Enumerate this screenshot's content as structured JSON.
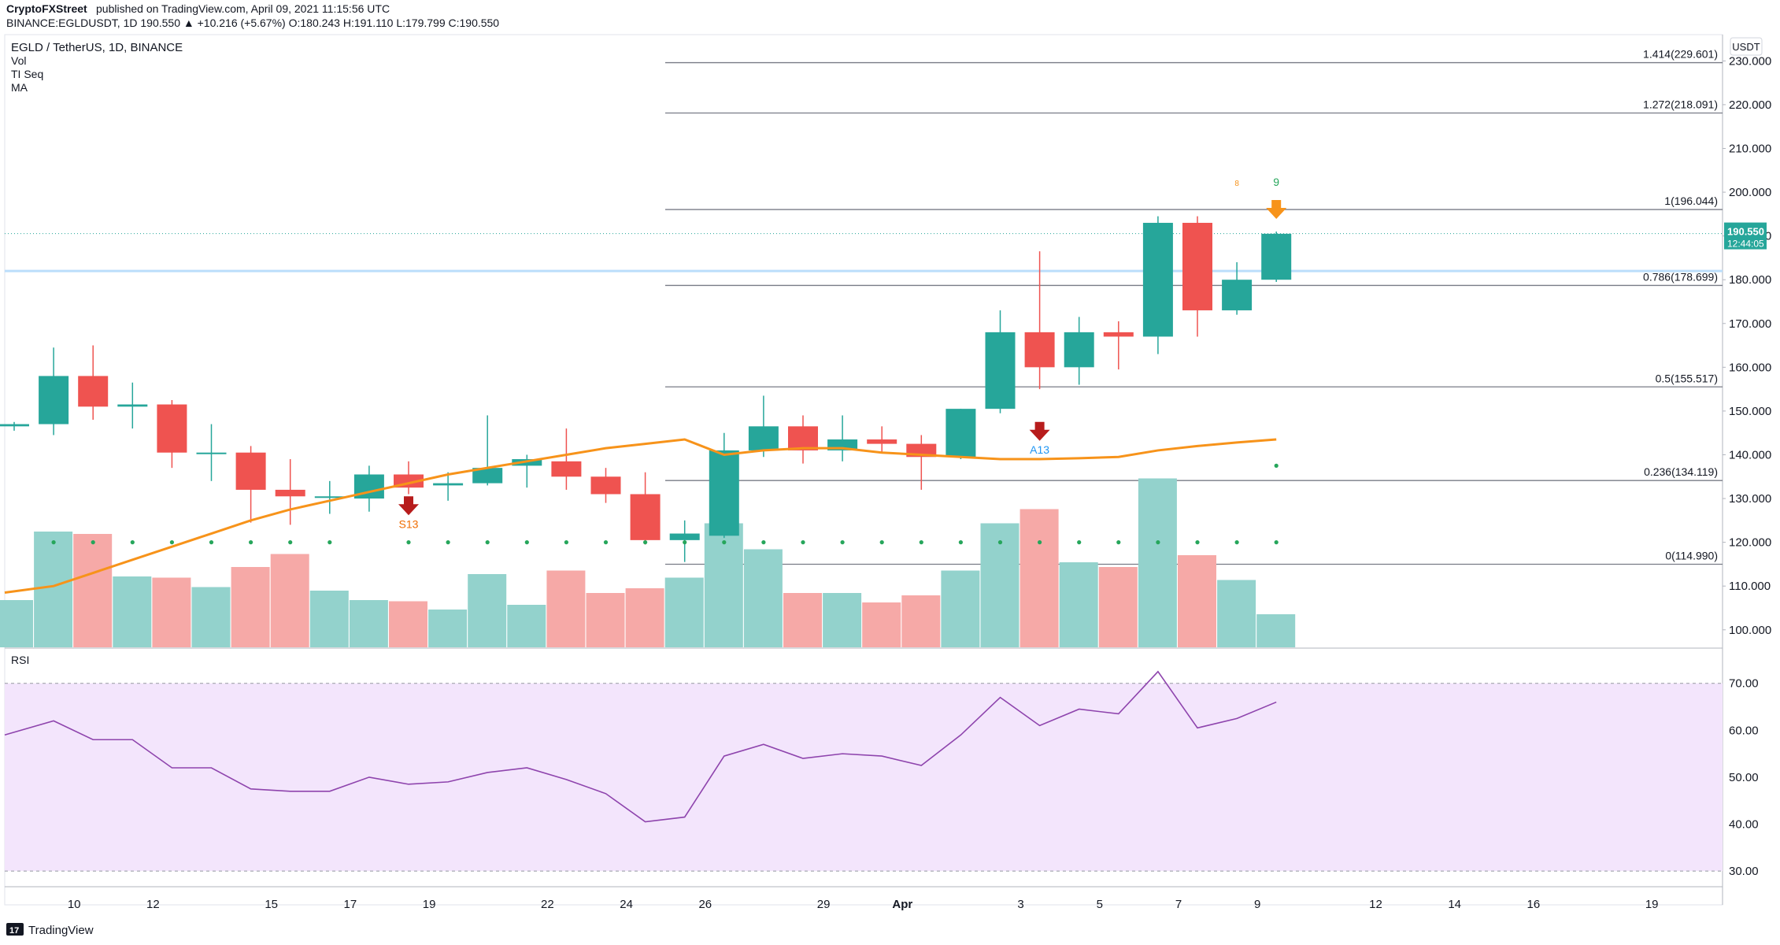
{
  "header": {
    "publisher": "CryptoFXStreet",
    "published_text": "published on TradingView.com, April 09, 2021 11:15:56 UTC",
    "ohlc_line": "BINANCE:EGLDUSDT, 1D  190.550  ▲  +10.216 (+5.67%)  O:180.243  H:191.110  L:179.799  C:190.550",
    "symbol_title": "EGLD / TetherUS, 1D, BINANCE",
    "indicators": [
      "Vol",
      "TI Seq",
      "MA"
    ]
  },
  "colors": {
    "up": "#26a69a",
    "down": "#ef5350",
    "vol_up": "#93d2cc",
    "vol_down": "#f6a9a7",
    "ma": "#f7931a",
    "fib": "#787b86",
    "rsi_line": "#8e44ad",
    "rsi_band": "#f3e5fc",
    "price_badge": "#26a69a",
    "horizontal_level": "#bbdefb"
  },
  "chart_data": {
    "type": "candlestick",
    "y_unit": "USDT",
    "ylim": [
      96,
      236
    ],
    "y_ticks": [
      "230.000",
      "220.000",
      "210.000",
      "200.000",
      "190.000",
      "180.000",
      "170.000",
      "160.000",
      "150.000",
      "140.000",
      "130.000",
      "120.000",
      "110.000",
      "100.000"
    ],
    "x_ticks": [
      "10",
      "12",
      "15",
      "17",
      "19",
      "22",
      "24",
      "26",
      "29",
      "Apr",
      "3",
      "5",
      "7",
      "9",
      "12",
      "14",
      "16",
      "19"
    ],
    "candles": [
      {
        "o": 146.5,
        "h": 147.5,
        "l": 145.5,
        "c": 147.0
      },
      {
        "o": 147.0,
        "h": 164.5,
        "l": 144.5,
        "c": 158.0
      },
      {
        "o": 158.0,
        "h": 165.0,
        "l": 148.0,
        "c": 151.0
      },
      {
        "o": 151.0,
        "h": 156.5,
        "l": 146.0,
        "c": 151.5
      },
      {
        "o": 151.5,
        "h": 152.5,
        "l": 137.0,
        "c": 140.5
      },
      {
        "o": 140.5,
        "h": 147.0,
        "l": 134.0,
        "c": 140.5
      },
      {
        "o": 140.5,
        "h": 142.0,
        "l": 124.5,
        "c": 132.0
      },
      {
        "o": 132.0,
        "h": 139.0,
        "l": 124.0,
        "c": 130.5
      },
      {
        "o": 130.5,
        "h": 134.0,
        "l": 126.5,
        "c": 130.5
      },
      {
        "o": 130.0,
        "h": 137.5,
        "l": 127.0,
        "c": 135.5
      },
      {
        "o": 135.5,
        "h": 138.5,
        "l": 131.0,
        "c": 132.5
      },
      {
        "o": 133.0,
        "h": 136.0,
        "l": 129.5,
        "c": 133.5
      },
      {
        "o": 133.5,
        "h": 149.0,
        "l": 133.0,
        "c": 137.0
      },
      {
        "o": 137.5,
        "h": 140.0,
        "l": 132.5,
        "c": 139.0
      },
      {
        "o": 138.5,
        "h": 146.0,
        "l": 132.0,
        "c": 135.0
      },
      {
        "o": 135.0,
        "h": 137.0,
        "l": 129.0,
        "c": 131.0
      },
      {
        "o": 131.0,
        "h": 136.0,
        "l": 119.5,
        "c": 120.5
      },
      {
        "o": 120.5,
        "h": 125.0,
        "l": 115.5,
        "c": 122.0
      },
      {
        "o": 121.5,
        "h": 145.0,
        "l": 121.0,
        "c": 141.0
      },
      {
        "o": 141.0,
        "h": 153.5,
        "l": 139.5,
        "c": 146.5
      },
      {
        "o": 146.5,
        "h": 149.0,
        "l": 138.0,
        "c": 141.0
      },
      {
        "o": 141.0,
        "h": 149.0,
        "l": 138.5,
        "c": 143.5
      },
      {
        "o": 143.5,
        "h": 146.5,
        "l": 140.5,
        "c": 142.5
      },
      {
        "o": 142.5,
        "h": 144.5,
        "l": 132.0,
        "c": 139.5
      },
      {
        "o": 139.5,
        "h": 150.5,
        "l": 139.0,
        "c": 150.5
      },
      {
        "o": 150.5,
        "h": 173.0,
        "l": 149.5,
        "c": 168.0
      },
      {
        "o": 168.0,
        "h": 186.5,
        "l": 155.0,
        "c": 160.0
      },
      {
        "o": 160.0,
        "h": 171.5,
        "l": 156.0,
        "c": 168.0
      },
      {
        "o": 168.0,
        "h": 170.5,
        "l": 159.5,
        "c": 167.0
      },
      {
        "o": 167.0,
        "h": 194.5,
        "l": 163.0,
        "c": 193.0
      },
      {
        "o": 193.0,
        "h": 194.5,
        "l": 167.0,
        "c": 173.0
      },
      {
        "o": 173.0,
        "h": 184.0,
        "l": 172.0,
        "c": 180.0
      },
      {
        "o": 180.0,
        "h": 191.0,
        "l": 179.5,
        "c": 190.5
      }
    ],
    "volume_rel": [
      0.4,
      0.98,
      0.96,
      0.6,
      0.59,
      0.51,
      0.68,
      0.79,
      0.48,
      0.4,
      0.39,
      0.32,
      0.62,
      0.36,
      0.65,
      0.46,
      0.5,
      0.59,
      1.05,
      0.83,
      0.46,
      0.46,
      0.38,
      0.44,
      0.65,
      1.05,
      1.17,
      0.72,
      0.68,
      1.43,
      0.78,
      0.57,
      0.28
    ],
    "ma": [
      108.5,
      110.0,
      113.0,
      116.0,
      119.0,
      122.0,
      125.0,
      127.5,
      129.5,
      131.5,
      133.5,
      135.5,
      137.0,
      138.5,
      140.0,
      141.5,
      142.5,
      143.5,
      140.0,
      141.0,
      141.5,
      141.5,
      140.5,
      140.0,
      139.5,
      139.0,
      139.0,
      139.2,
      139.5,
      141.0,
      142.0,
      142.8,
      143.5
    ],
    "ti_seq_dots_y": 120,
    "ti_seq_dots": [
      1,
      2,
      3,
      4,
      5,
      6,
      7,
      8,
      10,
      11,
      12,
      13,
      14,
      15,
      16,
      17,
      18,
      19,
      20,
      21,
      22,
      23,
      24,
      25,
      26,
      27,
      28,
      29,
      30,
      31,
      32
    ],
    "signals": [
      {
        "index": 10,
        "label": "S13",
        "color": "#ef6c00"
      },
      {
        "index": 26,
        "label": "A13",
        "color": "#2196f3"
      }
    ],
    "seq_top": {
      "index": 32,
      "label": "9",
      "small_label": "8"
    },
    "fib_levels": [
      {
        "label": "1.414(229.601)",
        "value": 229.601
      },
      {
        "label": "1.272(218.091)",
        "value": 218.091
      },
      {
        "label": "1(196.044)",
        "value": 196.044
      },
      {
        "label": "0.786(178.699)",
        "value": 178.699
      },
      {
        "label": "0.5(155.517)",
        "value": 155.517
      },
      {
        "label": "0.236(134.119)",
        "value": 134.119
      },
      {
        "label": "0(114.990)",
        "value": 114.99
      }
    ],
    "horizontal_level": 182.0,
    "last_price": {
      "value": "190.550",
      "countdown": "12:44:05"
    },
    "rsi": {
      "label": "RSI",
      "ylim": [
        27,
        77
      ],
      "upper": 70,
      "lower": 30,
      "ticks": [
        "70.00",
        "60.00",
        "50.00",
        "40.00",
        "30.00"
      ],
      "values": [
        59,
        62,
        58,
        58,
        52,
        52,
        47.5,
        47,
        47,
        50,
        48.5,
        49,
        51,
        52,
        49.5,
        46.5,
        40.5,
        41.5,
        54.5,
        57,
        54,
        55,
        54.5,
        52.5,
        59,
        67,
        61,
        64.5,
        63.5,
        72.5,
        60.5,
        62.5,
        66
      ]
    }
  },
  "footer": {
    "brand": "TradingView"
  }
}
